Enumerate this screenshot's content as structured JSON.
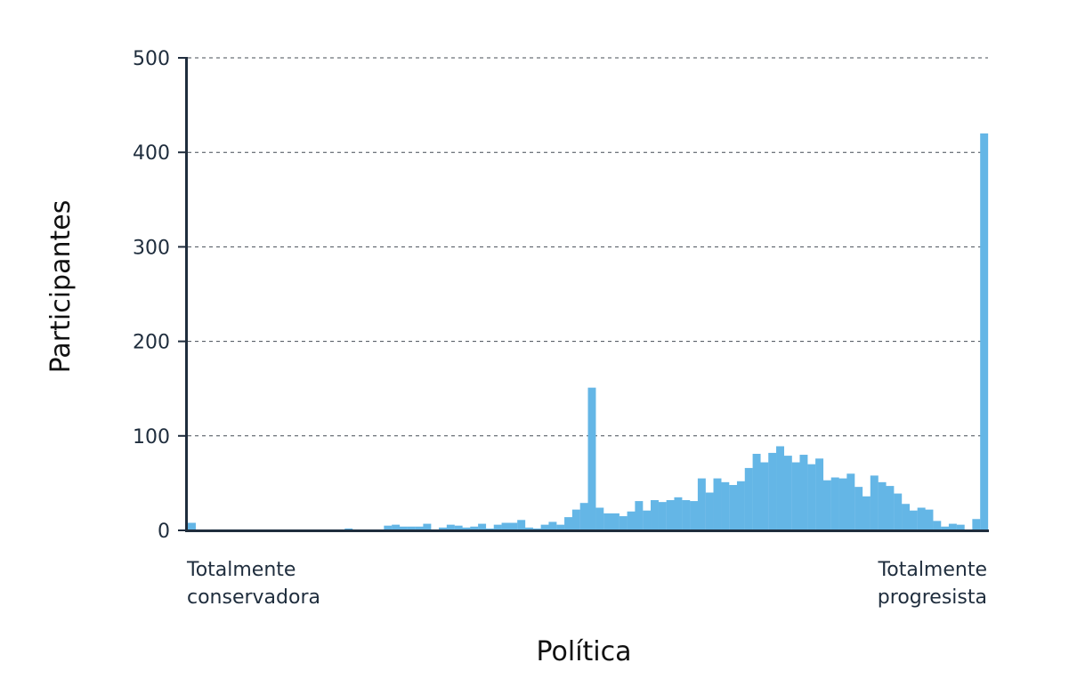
{
  "chart_data": {
    "type": "bar",
    "title": "",
    "xlabel": "Política",
    "ylabel": "Participantes",
    "ylim": [
      0,
      500
    ],
    "yticks": [
      "0",
      "100",
      "200",
      "300",
      "400",
      "500"
    ],
    "grid": true,
    "grid_style": "dashed",
    "bar_color": "#64b6e6",
    "x_end_labels": {
      "left": [
        "Totalmente",
        "conservadora"
      ],
      "right": [
        "Totalmente",
        "progresista"
      ]
    },
    "series": [
      {
        "values": [
          8,
          0,
          0,
          1,
          1,
          1,
          1,
          1,
          1,
          1,
          1,
          1,
          1,
          1,
          1,
          1,
          1,
          1,
          1,
          1,
          2,
          1,
          1,
          1,
          1,
          5,
          6,
          4,
          4,
          4,
          7,
          1,
          3,
          6,
          5,
          3,
          4,
          7,
          2,
          6,
          8,
          8,
          11,
          3,
          2,
          6,
          9,
          6,
          14,
          22,
          29,
          151,
          24,
          18,
          18,
          15,
          20,
          31,
          21,
          32,
          30,
          32,
          35,
          32,
          31,
          55,
          40,
          55,
          51,
          48,
          52,
          66,
          81,
          72,
          82,
          89,
          79,
          72,
          80,
          70,
          76,
          53,
          56,
          55,
          60,
          46,
          36,
          58,
          51,
          47,
          39,
          28,
          21,
          24,
          22,
          10,
          4,
          7,
          6,
          0,
          12,
          420
        ]
      }
    ]
  }
}
